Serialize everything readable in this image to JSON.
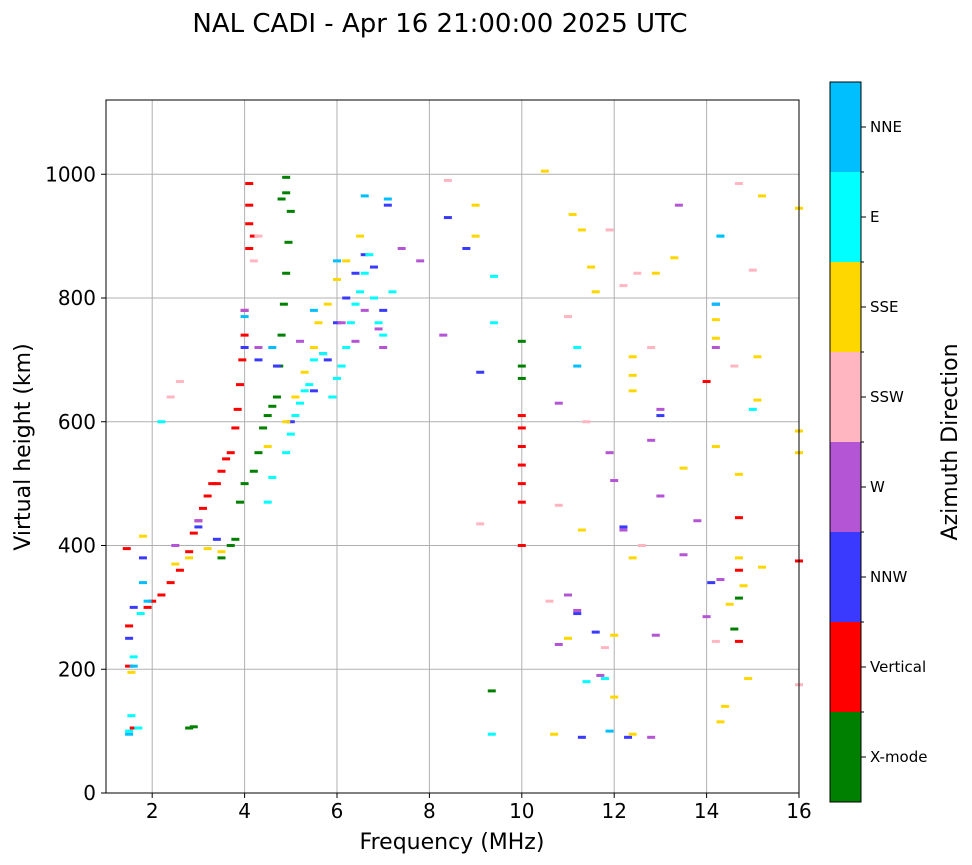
{
  "chart_data": {
    "type": "scatter",
    "title": "NAL CADI - Apr 16 21:00:00 2025 UTC",
    "xlabel": "Frequency (MHz)",
    "ylabel": "Virtual height (km)",
    "xlim": [
      1,
      16
    ],
    "ylim": [
      0,
      1120
    ],
    "xticks": [
      2,
      4,
      6,
      8,
      10,
      12,
      14,
      16
    ],
    "xtick_labels": [
      "2",
      "4",
      "6",
      "8",
      "10",
      "12",
      "14",
      "16"
    ],
    "yticks": [
      0,
      200,
      400,
      600,
      800,
      1000
    ],
    "ytick_labels": [
      "0",
      "200",
      "400",
      "600",
      "800",
      "1000"
    ],
    "grid": true,
    "colorbar": {
      "label": "Azimuth Direction",
      "categories": [
        {
          "name": "X-mode",
          "color": "#008000"
        },
        {
          "name": "Vertical",
          "color": "#ff0000"
        },
        {
          "name": "NNW",
          "color": "#3a3aff"
        },
        {
          "name": "W",
          "color": "#b455d6"
        },
        {
          "name": "SSW",
          "color": "#ffb6c1"
        },
        {
          "name": "SSE",
          "color": "#ffd700"
        },
        {
          "name": "E",
          "color": "#00ffff"
        },
        {
          "name": "NNE",
          "color": "#00bfff"
        }
      ]
    },
    "series": [
      {
        "name": "X-mode",
        "color": "#008000",
        "points": [
          [
            2.8,
            105
          ],
          [
            2.9,
            107
          ],
          [
            3.5,
            380
          ],
          [
            3.7,
            400
          ],
          [
            3.8,
            410
          ],
          [
            3.9,
            470
          ],
          [
            4.0,
            500
          ],
          [
            4.2,
            520
          ],
          [
            4.3,
            550
          ],
          [
            4.4,
            590
          ],
          [
            4.5,
            610
          ],
          [
            4.6,
            625
          ],
          [
            4.7,
            640
          ],
          [
            4.75,
            690
          ],
          [
            4.8,
            740
          ],
          [
            4.85,
            790
          ],
          [
            4.9,
            840
          ],
          [
            4.95,
            890
          ],
          [
            5.0,
            940
          ],
          [
            4.9,
            995
          ],
          [
            4.9,
            970
          ],
          [
            4.8,
            960
          ],
          [
            9.35,
            165
          ],
          [
            10.0,
            730
          ],
          [
            10.0,
            690
          ],
          [
            10.0,
            670
          ],
          [
            14.7,
            315
          ],
          [
            14.6,
            265
          ]
        ]
      },
      {
        "name": "Vertical",
        "color": "#ff0000",
        "points": [
          [
            1.45,
            395
          ],
          [
            1.5,
            270
          ],
          [
            1.5,
            205
          ],
          [
            1.6,
            105
          ],
          [
            1.9,
            300
          ],
          [
            2.0,
            310
          ],
          [
            2.2,
            320
          ],
          [
            2.4,
            340
          ],
          [
            2.6,
            360
          ],
          [
            2.8,
            390
          ],
          [
            2.9,
            420
          ],
          [
            3.0,
            440
          ],
          [
            3.1,
            460
          ],
          [
            3.2,
            480
          ],
          [
            3.3,
            500
          ],
          [
            3.4,
            500
          ],
          [
            3.5,
            520
          ],
          [
            3.6,
            540
          ],
          [
            3.7,
            550
          ],
          [
            3.8,
            590
          ],
          [
            3.85,
            620
          ],
          [
            3.9,
            660
          ],
          [
            3.95,
            700
          ],
          [
            4.0,
            740
          ],
          [
            4.0,
            780
          ],
          [
            4.1,
            880
          ],
          [
            4.1,
            920
          ],
          [
            4.1,
            950
          ],
          [
            4.1,
            985
          ],
          [
            4.2,
            900
          ],
          [
            10.0,
            400
          ],
          [
            10.0,
            470
          ],
          [
            10.0,
            500
          ],
          [
            10.0,
            530
          ],
          [
            10.0,
            560
          ],
          [
            10.0,
            590
          ],
          [
            10.0,
            610
          ],
          [
            14.0,
            665
          ],
          [
            14.7,
            445
          ],
          [
            14.7,
            360
          ],
          [
            14.7,
            245
          ],
          [
            16.0,
            375
          ]
        ]
      },
      {
        "name": "NNW",
        "color": "#3a3aff",
        "points": [
          [
            1.5,
            250
          ],
          [
            1.6,
            300
          ],
          [
            1.8,
            380
          ],
          [
            3.0,
            430
          ],
          [
            3.4,
            410
          ],
          [
            4.0,
            720
          ],
          [
            4.3,
            700
          ],
          [
            4.7,
            690
          ],
          [
            5.0,
            600
          ],
          [
            5.5,
            650
          ],
          [
            5.8,
            700
          ],
          [
            6.0,
            760
          ],
          [
            6.2,
            800
          ],
          [
            6.4,
            840
          ],
          [
            6.6,
            870
          ],
          [
            6.8,
            850
          ],
          [
            7.0,
            780
          ],
          [
            7.1,
            950
          ],
          [
            8.4,
            930
          ],
          [
            8.8,
            880
          ],
          [
            9.1,
            680
          ],
          [
            11.2,
            290
          ],
          [
            11.6,
            260
          ],
          [
            11.3,
            90
          ],
          [
            12.2,
            430
          ],
          [
            12.3,
            90
          ],
          [
            13.0,
            610
          ],
          [
            14.2,
            790
          ],
          [
            14.1,
            340
          ]
        ]
      },
      {
        "name": "W",
        "color": "#b455d6",
        "points": [
          [
            2.5,
            400
          ],
          [
            3.0,
            440
          ],
          [
            4.0,
            780
          ],
          [
            4.3,
            720
          ],
          [
            5.2,
            730
          ],
          [
            5.7,
            710
          ],
          [
            6.1,
            760
          ],
          [
            6.4,
            730
          ],
          [
            6.6,
            780
          ],
          [
            6.9,
            750
          ],
          [
            7.0,
            720
          ],
          [
            7.4,
            880
          ],
          [
            7.8,
            860
          ],
          [
            8.3,
            740
          ],
          [
            10.8,
            630
          ],
          [
            10.8,
            240
          ],
          [
            11.0,
            320
          ],
          [
            11.2,
            295
          ],
          [
            11.7,
            190
          ],
          [
            11.9,
            550
          ],
          [
            12.0,
            505
          ],
          [
            12.2,
            425
          ],
          [
            12.8,
            570
          ],
          [
            12.9,
            255
          ],
          [
            12.8,
            90
          ],
          [
            13.0,
            480
          ],
          [
            13.0,
            620
          ],
          [
            13.4,
            950
          ],
          [
            13.5,
            385
          ],
          [
            13.8,
            440
          ],
          [
            14.0,
            285
          ],
          [
            14.2,
            720
          ],
          [
            14.3,
            345
          ]
        ]
      },
      {
        "name": "SSW",
        "color": "#ffb6c1",
        "points": [
          [
            2.4,
            640
          ],
          [
            2.6,
            665
          ],
          [
            4.2,
            860
          ],
          [
            4.3,
            900
          ],
          [
            8.4,
            990
          ],
          [
            9.1,
            435
          ],
          [
            10.6,
            310
          ],
          [
            10.8,
            465
          ],
          [
            11.0,
            770
          ],
          [
            11.4,
            600
          ],
          [
            11.8,
            235
          ],
          [
            11.9,
            910
          ],
          [
            12.2,
            820
          ],
          [
            12.5,
            840
          ],
          [
            12.6,
            400
          ],
          [
            12.8,
            720
          ],
          [
            14.2,
            245
          ],
          [
            14.6,
            690
          ],
          [
            14.7,
            985
          ],
          [
            15.0,
            845
          ],
          [
            16.0,
            175
          ]
        ]
      },
      {
        "name": "SSE",
        "color": "#ffd700",
        "points": [
          [
            1.55,
            195
          ],
          [
            1.8,
            415
          ],
          [
            2.5,
            370
          ],
          [
            2.8,
            380
          ],
          [
            3.2,
            395
          ],
          [
            3.5,
            390
          ],
          [
            4.5,
            560
          ],
          [
            4.9,
            600
          ],
          [
            5.1,
            640
          ],
          [
            5.3,
            680
          ],
          [
            5.5,
            720
          ],
          [
            5.6,
            760
          ],
          [
            5.8,
            790
          ],
          [
            6.0,
            830
          ],
          [
            6.2,
            860
          ],
          [
            6.5,
            900
          ],
          [
            9.0,
            950
          ],
          [
            9.0,
            900
          ],
          [
            10.5,
            1005
          ],
          [
            10.7,
            95
          ],
          [
            11.0,
            250
          ],
          [
            11.1,
            935
          ],
          [
            11.3,
            910
          ],
          [
            11.3,
            425
          ],
          [
            11.6,
            810
          ],
          [
            11.5,
            850
          ],
          [
            12.0,
            255
          ],
          [
            12.0,
            155
          ],
          [
            12.4,
            380
          ],
          [
            12.4,
            705
          ],
          [
            12.4,
            675
          ],
          [
            12.4,
            650
          ],
          [
            12.4,
            95
          ],
          [
            12.9,
            840
          ],
          [
            13.3,
            865
          ],
          [
            13.5,
            525
          ],
          [
            14.2,
            765
          ],
          [
            14.2,
            735
          ],
          [
            14.2,
            560
          ],
          [
            14.3,
            115
          ],
          [
            14.4,
            140
          ],
          [
            14.5,
            305
          ],
          [
            14.7,
            515
          ],
          [
            14.7,
            380
          ],
          [
            14.8,
            335
          ],
          [
            14.9,
            185
          ],
          [
            15.1,
            705
          ],
          [
            15.1,
            635
          ],
          [
            15.2,
            365
          ],
          [
            15.2,
            965
          ],
          [
            16.0,
            945
          ],
          [
            16.0,
            585
          ],
          [
            16.0,
            550
          ]
        ]
      },
      {
        "name": "E",
        "color": "#00ffff",
        "points": [
          [
            1.5,
            100
          ],
          [
            1.55,
            125
          ],
          [
            1.6,
            220
          ],
          [
            1.7,
            105
          ],
          [
            1.75,
            290
          ],
          [
            2.2,
            600
          ],
          [
            4.5,
            470
          ],
          [
            4.6,
            510
          ],
          [
            4.9,
            550
          ],
          [
            5.0,
            580
          ],
          [
            5.1,
            610
          ],
          [
            5.2,
            630
          ],
          [
            5.3,
            650
          ],
          [
            5.4,
            660
          ],
          [
            5.5,
            700
          ],
          [
            5.7,
            710
          ],
          [
            5.9,
            640
          ],
          [
            6.0,
            670
          ],
          [
            6.1,
            690
          ],
          [
            6.2,
            720
          ],
          [
            6.3,
            760
          ],
          [
            6.4,
            790
          ],
          [
            6.5,
            810
          ],
          [
            6.6,
            840
          ],
          [
            6.7,
            870
          ],
          [
            6.8,
            800
          ],
          [
            6.9,
            760
          ],
          [
            7.0,
            740
          ],
          [
            7.2,
            810
          ],
          [
            9.35,
            95
          ],
          [
            9.4,
            835
          ],
          [
            9.4,
            760
          ],
          [
            11.2,
            720
          ],
          [
            11.4,
            180
          ],
          [
            11.8,
            185
          ],
          [
            14.3,
            900
          ],
          [
            15.0,
            620
          ]
        ]
      },
      {
        "name": "NNE",
        "color": "#00bfff",
        "points": [
          [
            1.5,
            95
          ],
          [
            1.6,
            205
          ],
          [
            1.8,
            340
          ],
          [
            1.9,
            310
          ],
          [
            4.0,
            770
          ],
          [
            4.6,
            720
          ],
          [
            5.5,
            780
          ],
          [
            6.0,
            860
          ],
          [
            6.6,
            965
          ],
          [
            7.1,
            960
          ],
          [
            11.2,
            690
          ],
          [
            11.9,
            100
          ],
          [
            14.3,
            900
          ],
          [
            14.2,
            790
          ]
        ]
      }
    ]
  }
}
